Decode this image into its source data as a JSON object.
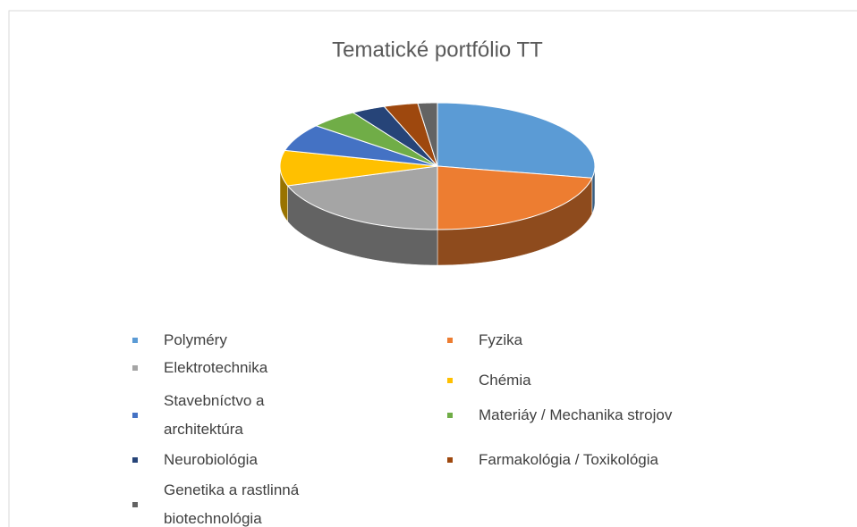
{
  "chart_data": {
    "type": "pie3d",
    "title": "Tematické portfólio TT",
    "categories": [
      "Polyméry",
      "Fyzika",
      "Elektrotechnika",
      "Chémia",
      "Stavebníctvo a architektúra",
      "Materiáy / Mechanika strojov",
      "Neurobiológia",
      "Farmakológia / Toxikológia",
      "Genetika a rastlinná biotechnológia"
    ],
    "values": [
      28,
      22,
      20,
      9,
      7,
      5,
      3.5,
      3.5,
      2
    ],
    "colors": [
      "#5b9bd5",
      "#ed7d31",
      "#a5a5a5",
      "#ffc000",
      "#4472c4",
      "#70ad47",
      "#264478",
      "#9e480e",
      "#636363"
    ],
    "legend": "bottom"
  }
}
